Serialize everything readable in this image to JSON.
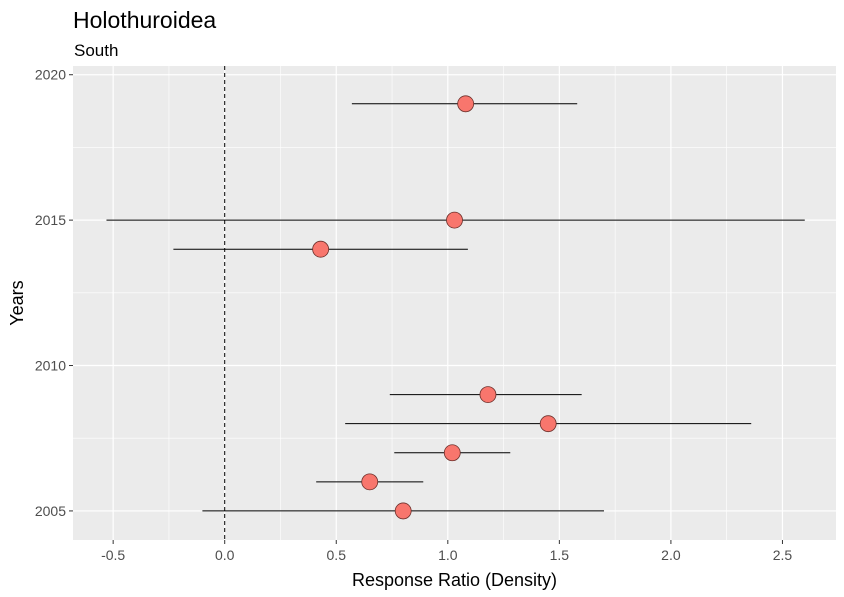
{
  "chart_data": {
    "type": "scatter",
    "title": "Holothuroidea",
    "subtitle": "South",
    "xlabel": "Response Ratio (Density)",
    "ylabel": "Years",
    "xlim": [
      -0.68,
      2.74
    ],
    "ylim": [
      2004.0,
      2020.3
    ],
    "x_ticks": [
      -0.5,
      0.0,
      0.5,
      1.0,
      1.5,
      2.0,
      2.5
    ],
    "x_tick_labels": [
      "-0.5",
      "0.0",
      "0.5",
      "1.0",
      "1.5",
      "2.0",
      "2.5"
    ],
    "y_ticks": [
      2005,
      2010,
      2015,
      2020
    ],
    "y_tick_labels": [
      "2005",
      "2010",
      "2015",
      "2020"
    ],
    "reference_line_x": 0,
    "grid": true,
    "point_color": "#f8766d",
    "points": [
      {
        "year": 2019,
        "estimate": 1.08,
        "ci_low": 0.57,
        "ci_high": 1.58
      },
      {
        "year": 2015,
        "estimate": 1.03,
        "ci_low": -0.53,
        "ci_high": 2.6
      },
      {
        "year": 2014,
        "estimate": 0.43,
        "ci_low": -0.23,
        "ci_high": 1.09
      },
      {
        "year": 2009,
        "estimate": 1.18,
        "ci_low": 0.74,
        "ci_high": 1.6
      },
      {
        "year": 2008,
        "estimate": 1.45,
        "ci_low": 0.54,
        "ci_high": 2.36
      },
      {
        "year": 2007,
        "estimate": 1.02,
        "ci_low": 0.76,
        "ci_high": 1.28
      },
      {
        "year": 2006,
        "estimate": 0.65,
        "ci_low": 0.41,
        "ci_high": 0.89
      },
      {
        "year": 2005,
        "estimate": 0.8,
        "ci_low": -0.1,
        "ci_high": 1.7
      }
    ]
  }
}
